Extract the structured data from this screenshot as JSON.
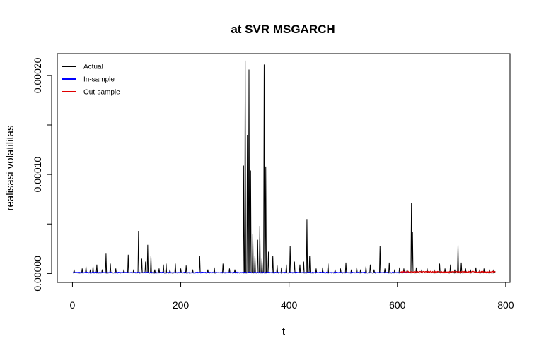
{
  "chart_data": {
    "type": "line",
    "title": "at SVR MSGARCH",
    "xlabel": "t",
    "ylabel": "realisasi volatilitas",
    "xlim": [
      -28,
      808
    ],
    "ylim": [
      -9e-06,
      0.000222
    ],
    "x_ticks": [
      0,
      200,
      400,
      600,
      800
    ],
    "x_tick_labels": [
      "0",
      "200",
      "400",
      "600",
      "800"
    ],
    "y_ticks": [
      0,
      5e-05,
      0.0001,
      0.00015,
      0.0002
    ],
    "y_tick_labels": [
      "0.00000",
      "",
      "0.00010",
      "",
      "0.00020"
    ],
    "grid": false,
    "legend_position": "top-left",
    "series": [
      {
        "name": "Actual",
        "color": "#000000",
        "spikes": [
          [
            3,
            4e-06
          ],
          [
            18,
            5e-06
          ],
          [
            25,
            7e-06
          ],
          [
            33,
            4e-06
          ],
          [
            38,
            7e-06
          ],
          [
            45,
            9e-06
          ],
          [
            55,
            4e-06
          ],
          [
            62,
            2e-05
          ],
          [
            70,
            1e-05
          ],
          [
            80,
            5e-06
          ],
          [
            95,
            4e-06
          ],
          [
            103,
            1.9e-05
          ],
          [
            113,
            4e-06
          ],
          [
            122,
            4.3e-05
          ],
          [
            128,
            1.5e-05
          ],
          [
            135,
            1.2e-05
          ],
          [
            139,
            2.9e-05
          ],
          [
            145,
            1.8e-05
          ],
          [
            152,
            4e-06
          ],
          [
            160,
            5e-06
          ],
          [
            168,
            9e-06
          ],
          [
            173,
            1e-05
          ],
          [
            180,
            4e-06
          ],
          [
            190,
            1e-05
          ],
          [
            200,
            5e-06
          ],
          [
            210,
            8e-06
          ],
          [
            222,
            4e-06
          ],
          [
            235,
            1.8e-05
          ],
          [
            250,
            4e-06
          ],
          [
            262,
            6e-06
          ],
          [
            278,
            1e-05
          ],
          [
            290,
            5e-06
          ],
          [
            300,
            4e-06
          ],
          [
            316,
            0.000109
          ],
          [
            319,
            0.000215
          ],
          [
            323,
            0.00014
          ],
          [
            326,
            0.000206
          ],
          [
            329,
            0.000104
          ],
          [
            333,
            4e-05
          ],
          [
            337,
            1.8e-05
          ],
          [
            342,
            3.4e-05
          ],
          [
            346,
            4.8e-05
          ],
          [
            350,
            1.5e-05
          ],
          [
            354,
            0.000211
          ],
          [
            357,
            0.000108
          ],
          [
            362,
            2.2e-05
          ],
          [
            370,
            1.8e-05
          ],
          [
            378,
            8e-06
          ],
          [
            386,
            6e-06
          ],
          [
            395,
            9e-06
          ],
          [
            402,
            2.8e-05
          ],
          [
            410,
            1.2e-05
          ],
          [
            420,
            9e-06
          ],
          [
            427,
            1.2e-05
          ],
          [
            433,
            5.5e-05
          ],
          [
            438,
            1.8e-05
          ],
          [
            450,
            5e-06
          ],
          [
            462,
            6e-06
          ],
          [
            472,
            1e-05
          ],
          [
            485,
            4e-06
          ],
          [
            495,
            5e-06
          ],
          [
            505,
            1.1e-05
          ],
          [
            515,
            4e-06
          ],
          [
            525,
            6e-06
          ],
          [
            532,
            4e-06
          ],
          [
            542,
            7e-06
          ],
          [
            550,
            9e-06
          ],
          [
            557,
            4e-06
          ],
          [
            568,
            2.8e-05
          ],
          [
            577,
            5e-06
          ],
          [
            585,
            1.1e-05
          ],
          [
            595,
            4e-06
          ],
          [
            604,
            6e-06
          ],
          [
            612,
            5e-06
          ],
          [
            618,
            4e-06
          ],
          [
            626,
            7.1e-05
          ],
          [
            628,
            4.2e-05
          ],
          [
            635,
            6e-06
          ],
          [
            645,
            4e-06
          ],
          [
            655,
            5e-06
          ],
          [
            668,
            4e-06
          ],
          [
            678,
            1e-05
          ],
          [
            688,
            5e-06
          ],
          [
            698,
            9e-06
          ],
          [
            706,
            4e-06
          ],
          [
            712,
            2.9e-05
          ],
          [
            718,
            1.1e-05
          ],
          [
            726,
            5e-06
          ],
          [
            735,
            4e-06
          ],
          [
            745,
            6e-06
          ],
          [
            752,
            4e-06
          ],
          [
            760,
            5e-06
          ],
          [
            770,
            4e-06
          ],
          [
            778,
            4e-06
          ]
        ]
      },
      {
        "name": "In-sample",
        "color": "#0000ff",
        "x_range": [
          1,
          620
        ],
        "level": 5e-07
      },
      {
        "name": "Out-sample",
        "color": "#e00000",
        "x_range": [
          606,
          781
        ],
        "level": 1e-06
      }
    ]
  }
}
